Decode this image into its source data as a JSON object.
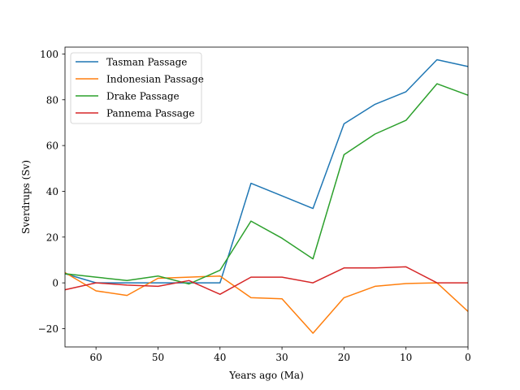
{
  "chart_data": {
    "type": "line",
    "xlabel": "Years ago (Ma)",
    "ylabel": "Sverdrups (Sv)",
    "xlim": [
      65,
      0
    ],
    "ylim": [
      -28,
      103
    ],
    "x_reversed": true,
    "xticks": [
      60,
      50,
      40,
      30,
      20,
      10,
      0
    ],
    "yticks": [
      -20,
      0,
      20,
      40,
      60,
      80,
      100
    ],
    "ytick_labels": [
      "−20",
      "0",
      "20",
      "40",
      "60",
      "80",
      "100"
    ],
    "legend_position": "top-left",
    "grid": false,
    "x": [
      65,
      60,
      55,
      50,
      45,
      40,
      35,
      30,
      25,
      20,
      15,
      10,
      5,
      0
    ],
    "series": [
      {
        "name": "Tasman Passage",
        "color": "#1f77b4",
        "values": [
          4,
          0,
          0,
          0,
          0,
          0,
          43.5,
          38,
          32.5,
          69.5,
          78,
          83.5,
          97.5,
          94.5
        ]
      },
      {
        "name": "Indonesian Passage",
        "color": "#ff7f0e",
        "values": [
          4.5,
          -3.5,
          -5.5,
          2,
          2.5,
          3,
          -6.5,
          -7,
          -22,
          -6.5,
          -1.5,
          -0.3,
          0,
          -12.5
        ]
      },
      {
        "name": "Drake Passage",
        "color": "#2ca02c",
        "values": [
          4,
          2.5,
          1,
          3,
          -0.5,
          5.5,
          27,
          19.5,
          10.5,
          56,
          65,
          71,
          87,
          82
        ]
      },
      {
        "name": "Pannema Passage",
        "color": "#d62728",
        "values": [
          -3,
          0,
          -1,
          -1.5,
          1,
          -5,
          2.5,
          2.5,
          0,
          6.5,
          6.5,
          7,
          0,
          0
        ]
      }
    ]
  }
}
